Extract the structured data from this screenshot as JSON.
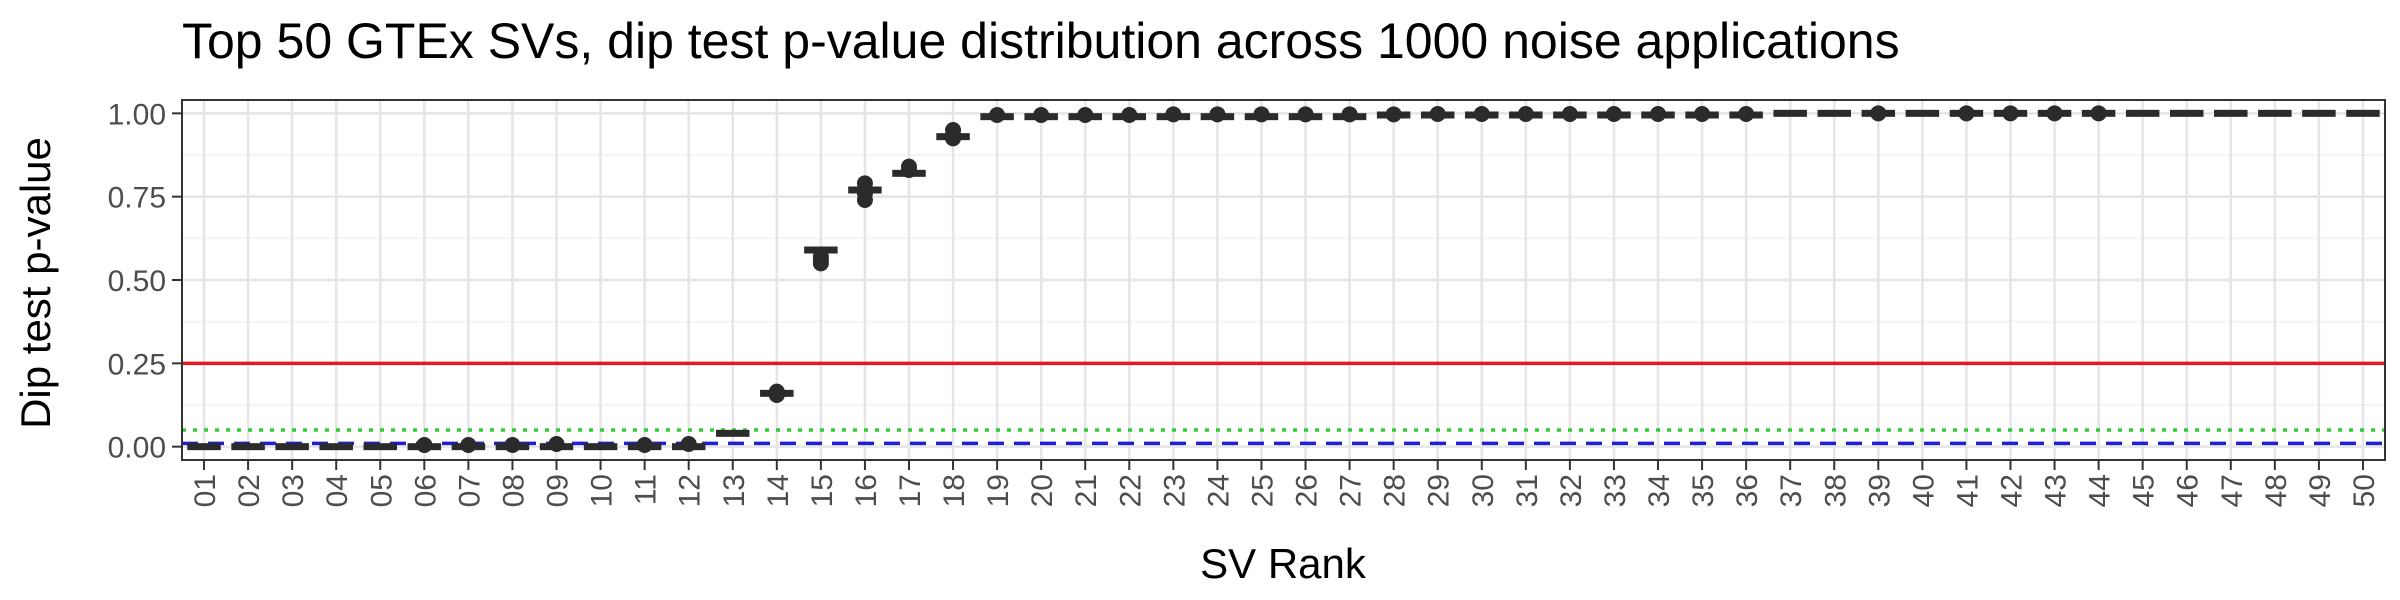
{
  "chart_data": {
    "type": "box",
    "title": "Top 50 GTEx SVs, dip test p-value distribution across 1000 noise applications",
    "xlabel": "SV Rank",
    "ylabel": "Dip test p-value",
    "categories": [
      "01",
      "02",
      "03",
      "04",
      "05",
      "06",
      "07",
      "08",
      "09",
      "10",
      "11",
      "12",
      "13",
      "14",
      "15",
      "16",
      "17",
      "18",
      "19",
      "20",
      "21",
      "22",
      "23",
      "24",
      "25",
      "26",
      "27",
      "28",
      "29",
      "30",
      "31",
      "32",
      "33",
      "34",
      "35",
      "36",
      "37",
      "38",
      "39",
      "40",
      "41",
      "42",
      "43",
      "44",
      "45",
      "46",
      "47",
      "48",
      "49",
      "50"
    ],
    "medians": [
      0.0,
      0.0,
      0.0,
      0.0,
      0.0,
      0.0,
      0.0,
      0.0,
      0.0,
      0.0,
      0.0,
      0.0,
      0.04,
      0.16,
      0.59,
      0.77,
      0.82,
      0.93,
      0.99,
      0.99,
      0.99,
      0.99,
      0.99,
      0.99,
      0.99,
      0.99,
      0.99,
      0.995,
      0.995,
      0.995,
      0.995,
      0.995,
      0.995,
      0.995,
      0.995,
      0.995,
      1.0,
      1.0,
      1.0,
      1.0,
      1.0,
      1.0,
      1.0,
      1.0,
      1.0,
      1.0,
      1.0,
      1.0,
      1.0,
      1.0
    ],
    "outliers": [
      {
        "category": "06",
        "values": [
          0.005
        ]
      },
      {
        "category": "07",
        "values": [
          0.005
        ]
      },
      {
        "category": "08",
        "values": [
          0.005
        ]
      },
      {
        "category": "09",
        "values": [
          0.008
        ]
      },
      {
        "category": "11",
        "values": [
          0.005
        ]
      },
      {
        "category": "12",
        "values": [
          0.008
        ]
      },
      {
        "category": "14",
        "values": [
          0.165,
          0.155
        ]
      },
      {
        "category": "15",
        "values": [
          0.57,
          0.56,
          0.55
        ]
      },
      {
        "category": "16",
        "values": [
          0.79,
          0.76,
          0.74
        ]
      },
      {
        "category": "17",
        "values": [
          0.84,
          0.83
        ]
      },
      {
        "category": "18",
        "values": [
          0.95,
          0.935,
          0.925
        ]
      },
      {
        "category": "19",
        "values": [
          0.995
        ]
      },
      {
        "category": "20",
        "values": [
          0.995
        ]
      },
      {
        "category": "21",
        "values": [
          0.995
        ]
      },
      {
        "category": "22",
        "values": [
          0.995
        ]
      },
      {
        "category": "23",
        "values": [
          0.997
        ]
      },
      {
        "category": "24",
        "values": [
          0.997
        ]
      },
      {
        "category": "25",
        "values": [
          0.997
        ]
      },
      {
        "category": "26",
        "values": [
          0.997
        ]
      },
      {
        "category": "27",
        "values": [
          0.997
        ]
      },
      {
        "category": "28",
        "values": [
          0.997
        ]
      },
      {
        "category": "29",
        "values": [
          0.998
        ]
      },
      {
        "category": "30",
        "values": [
          0.998
        ]
      },
      {
        "category": "31",
        "values": [
          0.998
        ]
      },
      {
        "category": "32",
        "values": [
          0.998
        ]
      },
      {
        "category": "33",
        "values": [
          0.998
        ]
      },
      {
        "category": "34",
        "values": [
          0.998
        ]
      },
      {
        "category": "35",
        "values": [
          0.998
        ]
      },
      {
        "category": "36",
        "values": [
          0.998
        ]
      },
      {
        "category": "39",
        "values": [
          1.0
        ]
      },
      {
        "category": "41",
        "values": [
          1.0
        ]
      },
      {
        "category": "42",
        "values": [
          1.0
        ]
      },
      {
        "category": "43",
        "values": [
          1.0
        ]
      },
      {
        "category": "44",
        "values": [
          1.0
        ]
      }
    ],
    "reference_lines": [
      {
        "y": 0.25,
        "color": "#e41a1c",
        "style": "solid"
      },
      {
        "y": 0.05,
        "color": "#33cc33",
        "style": "dotted"
      },
      {
        "y": 0.01,
        "color": "#1f1fd6",
        "style": "dashed"
      }
    ],
    "ylim": [
      -0.04,
      1.04
    ],
    "yticks": [
      0.0,
      0.25,
      0.5,
      0.75,
      1.0
    ],
    "yticklabels": [
      "0.00",
      "0.25",
      "0.50",
      "0.75",
      "1.00"
    ],
    "grid": true,
    "x_tick_rotation": "vertical"
  },
  "colors": {
    "box": "#2b2b2b",
    "grid_major": "#e5e5e5",
    "grid_minor": "#f1f1f1",
    "panel_border": "#333333"
  }
}
